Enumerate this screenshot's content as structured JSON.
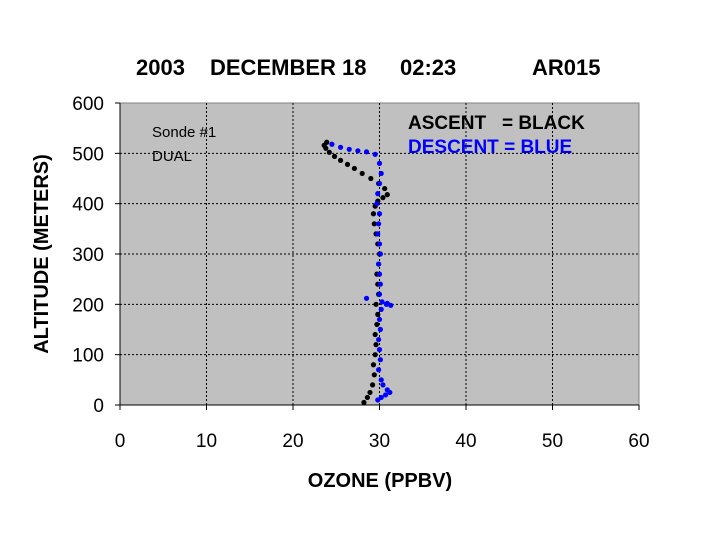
{
  "chart_data": {
    "type": "scatter",
    "title": {
      "year": "2003",
      "date": "DECEMBER 18",
      "time": "02:23",
      "code": "AR015"
    },
    "xlabel": "OZONE (PPBV)",
    "ylabel": "ALTITUDE (METERS)",
    "xlim": [
      0,
      60
    ],
    "ylim": [
      0,
      600
    ],
    "xticks": [
      "0",
      "10",
      "20",
      "30",
      "40",
      "50",
      "60"
    ],
    "yticks": [
      "0",
      "100",
      "200",
      "300",
      "400",
      "500",
      "600"
    ],
    "grid": true,
    "plot_background": "#c0c0c0",
    "annotation": [
      "Sonde #1",
      "DUAL"
    ],
    "legend": {
      "placement": "top-right",
      "ascent": "ASCENT   = BLACK",
      "descent": "DESCENT = BLUE"
    },
    "series": [
      {
        "color": "#000000",
        "x": [
          28.2,
          28.6,
          28.9,
          29.2,
          29.4,
          29.3,
          29.5,
          29.6,
          29.5,
          29.7,
          29.8,
          29.6,
          29.9,
          29.8,
          29.7,
          29.9,
          30.0,
          29.8,
          29.6,
          29.4,
          29.3,
          29.5,
          29.8,
          30.4,
          30.9,
          30.6,
          29.9,
          29.0,
          28.0,
          27.1,
          26.3,
          25.5,
          24.8,
          24.2,
          23.8,
          23.6,
          23.9
        ],
        "y": [
          5,
          15,
          25,
          40,
          60,
          80,
          100,
          120,
          140,
          160,
          180,
          200,
          220,
          240,
          260,
          280,
          300,
          320,
          340,
          360,
          380,
          395,
          405,
          412,
          418,
          430,
          440,
          450,
          460,
          470,
          478,
          486,
          494,
          502,
          510,
          516,
          522
        ]
      },
      {
        "color": "#0000ff",
        "x": [
          24.5,
          25.5,
          26.5,
          27.5,
          28.5,
          29.5,
          30.0,
          30.2,
          30.0,
          29.8,
          29.7,
          30.0,
          29.9,
          29.8,
          30.0,
          30.1,
          29.9,
          30.0,
          30.1,
          30.0,
          30.3,
          30.8,
          31.3,
          30.9,
          30.2,
          30.0,
          30.1,
          29.9,
          30.0,
          30.1,
          29.9,
          30.2,
          30.4,
          30.9,
          31.2,
          30.7,
          30.2,
          29.8
        ],
        "y": [
          518,
          512,
          508,
          505,
          503,
          498,
          480,
          460,
          440,
          420,
          400,
          380,
          360,
          340,
          320,
          300,
          280,
          260,
          240,
          220,
          205,
          200,
          198,
          202,
          190,
          170,
          150,
          130,
          110,
          90,
          70,
          50,
          40,
          30,
          25,
          20,
          15,
          10
        ]
      },
      {
        "color": "#0000ff",
        "x": [
          28.5
        ],
        "y": [
          212
        ]
      }
    ]
  }
}
